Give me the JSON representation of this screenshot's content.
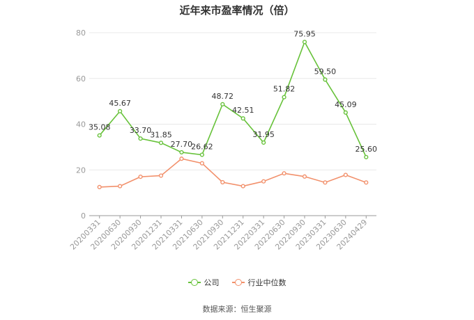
{
  "chart_data": {
    "type": "line",
    "title": "近年来市盈率情况（倍）",
    "categories": [
      "20200331",
      "20200630",
      "20200930",
      "20201231",
      "20210331",
      "20210630",
      "20210930",
      "20211231",
      "20220331",
      "20220630",
      "20220930",
      "20230331",
      "20230630",
      "20240429"
    ],
    "series": [
      {
        "name": "公司",
        "color": "#67c23a",
        "values": [
          35.08,
          45.67,
          33.7,
          31.85,
          27.7,
          26.62,
          48.72,
          42.51,
          31.95,
          51.82,
          75.95,
          59.5,
          45.09,
          25.6
        ],
        "labels": [
          "35.08",
          "45.67",
          "33.70",
          "31.85",
          "27.70",
          "26.62",
          "48.72",
          "42.51",
          "31.95",
          "51.82",
          "75.95",
          "59.50",
          "45.09",
          "25.60"
        ]
      },
      {
        "name": "行业中位数",
        "color": "#f2906b",
        "values": [
          12.5,
          12.9,
          17.0,
          17.5,
          24.9,
          22.9,
          14.6,
          12.9,
          15.0,
          18.5,
          17.1,
          14.5,
          17.8,
          14.5
        ]
      }
    ],
    "yticks": [
      "0",
      "20",
      "40",
      "60",
      "80"
    ],
    "ylim": [
      0,
      80
    ],
    "grid": true,
    "legend": "bottom-center"
  },
  "source": "数据来源：恒生聚源"
}
